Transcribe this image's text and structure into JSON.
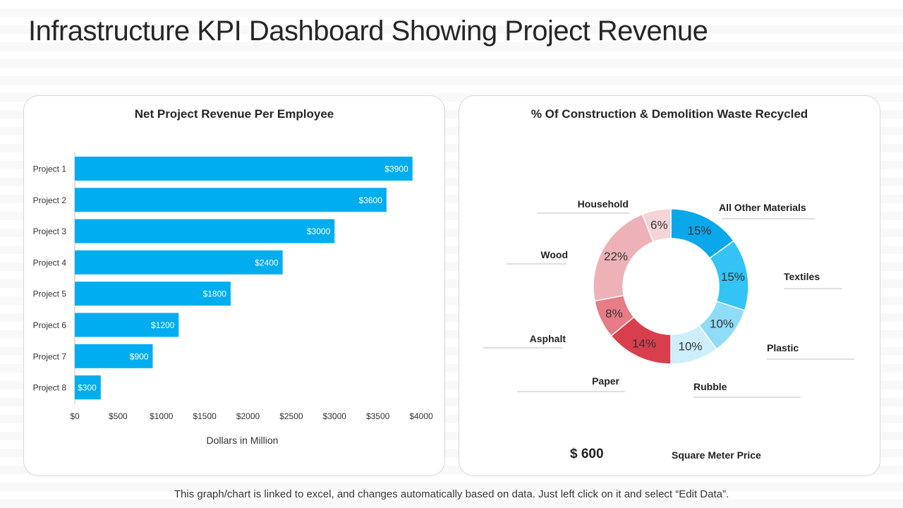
{
  "page": {
    "title": "Infrastructure KPI Dashboard Showing Project Revenue",
    "footer_note": "This graph/chart is linked to excel, and changes automatically  based on data. Just left click on it and select “Edit Data”."
  },
  "price": {
    "value": "$ 600",
    "label": "Square Meter Price"
  },
  "colors": {
    "bar": "#00adef",
    "donut": [
      "#0aa8ea",
      "#33c4f5",
      "#8fdcf8",
      "#cdeefb",
      "#d93e4e",
      "#e77b86",
      "#eeb1b8",
      "#f4d4d7"
    ]
  },
  "chart_data": [
    {
      "type": "bar",
      "orientation": "horizontal",
      "title": "Net Project Revenue Per Employee",
      "xlabel": "Dollars in Million",
      "ylabel": "",
      "categories": [
        "Project 1",
        "Project 2",
        "Project 3",
        "Project 4",
        "Project 5",
        "Project 6",
        "Project 7",
        "Project 8"
      ],
      "values": [
        3900,
        3600,
        3000,
        2400,
        1800,
        1200,
        900,
        300
      ],
      "value_labels": [
        "$3900",
        "$3600",
        "$3000",
        "$2400",
        "$1800",
        "$1200",
        "$900",
        "$300"
      ],
      "xlim": [
        0,
        4000
      ],
      "ticks": [
        0,
        500,
        1000,
        1500,
        2000,
        2500,
        3000,
        3500,
        4000
      ],
      "tick_labels": [
        "$0",
        "$500",
        "$1000",
        "$1500",
        "$2000",
        "$2500",
        "$3000",
        "$3500",
        "$4000"
      ],
      "grid": false
    },
    {
      "type": "pie",
      "variant": "donut",
      "title": "% Of Construction & Demolition Waste Recycled",
      "categories": [
        "All Other Materials",
        "Textiles",
        "Plastic",
        "Rubble",
        "Paper",
        "Asphalt",
        "Wood",
        "Household"
      ],
      "values": [
        15,
        15,
        10,
        10,
        14,
        8,
        22,
        6
      ],
      "value_labels": [
        "15%",
        "15%",
        "10%",
        "10%",
        "14%",
        "8%",
        "22%",
        "6%"
      ]
    }
  ]
}
